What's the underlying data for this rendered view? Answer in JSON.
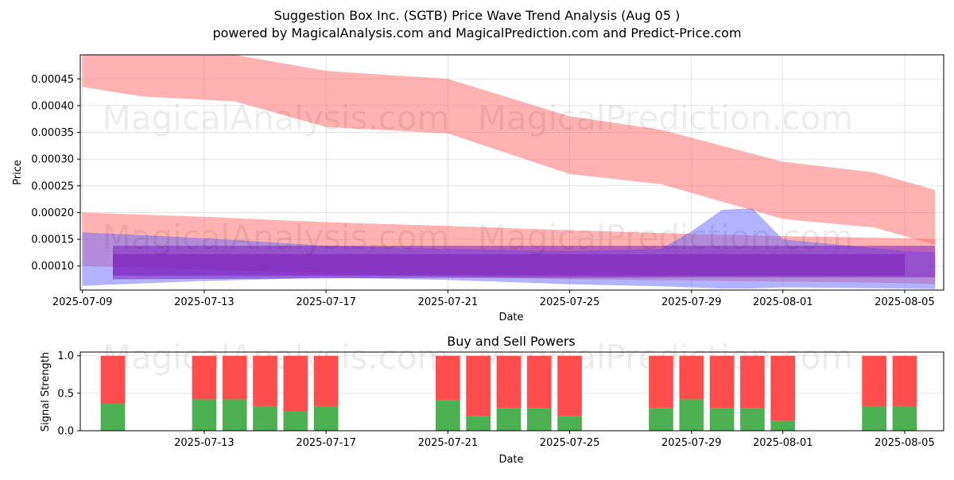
{
  "title_line1": "Suggestion Box Inc. (SGTB) Price Wave Trend Analysis (Aug 05 )",
  "title_line2": "powered by MagicalAnalysis.com and MagicalPrediction.com and Predict-Price.com",
  "watermarks": [
    "MagicalAnalysis.com",
    "MagicalPrediction.com"
  ],
  "colors": {
    "red_band": "#ff6666",
    "blue_band": "#6666ff",
    "purple_band": "#7f1fbf",
    "buy": "#4caf50",
    "sell": "#ff4c4c"
  },
  "chart_data": [
    {
      "type": "area",
      "title": "",
      "xlabel": "Date",
      "ylabel": "Price",
      "x_ticks": [
        "2025-07-09",
        "2025-07-13",
        "2025-07-17",
        "2025-07-21",
        "2025-07-25",
        "2025-07-29",
        "2025-08-01",
        "2025-08-05"
      ],
      "y_ticks": [
        "0.00010",
        "0.00015",
        "0.00020",
        "0.00025",
        "0.00030",
        "0.00035",
        "0.00040",
        "0.00045"
      ],
      "xlim": [
        "2025-07-09",
        "2025-08-06"
      ],
      "ylim": [
        5.5e-05,
        0.000495
      ],
      "grid": true,
      "series": [
        {
          "kind": "band",
          "color": "red",
          "x": [
            "2025-07-09",
            "2025-07-11",
            "2025-07-14",
            "2025-07-17",
            "2025-07-21",
            "2025-07-25",
            "2025-07-28",
            "2025-08-01",
            "2025-08-04",
            "2025-08-06"
          ],
          "upper": [
            0.000495,
            0.000495,
            0.000495,
            0.000465,
            0.00045,
            0.00038,
            0.000355,
            0.000295,
            0.000275,
            0.000242
          ],
          "lower": [
            0.000435,
            0.000417,
            0.000408,
            0.00036,
            0.000348,
            0.000272,
            0.000253,
            0.000188,
            0.000172,
            0.00014
          ]
        },
        {
          "kind": "band",
          "color": "red",
          "x": [
            "2025-07-09",
            "2025-07-13",
            "2025-07-17",
            "2025-07-21",
            "2025-07-25",
            "2025-07-29",
            "2025-08-01",
            "2025-08-05",
            "2025-08-06"
          ],
          "upper": [
            0.0002,
            0.000192,
            0.000182,
            0.000175,
            0.000167,
            0.00016,
            0.000156,
            0.000152,
            0.00015
          ],
          "lower": [
            0.0001,
            9.3e-05,
            8.6e-05,
            8e-05,
            7.5e-05,
            7.3e-05,
            7.1e-05,
            6.8e-05,
            6.6e-05
          ]
        },
        {
          "kind": "band",
          "color": "blue",
          "x": [
            "2025-07-09",
            "2025-07-13",
            "2025-07-17",
            "2025-07-21",
            "2025-07-25",
            "2025-07-28",
            "2025-07-29",
            "2025-07-30",
            "2025-07-31",
            "2025-08-01",
            "2025-08-05",
            "2025-08-06"
          ],
          "upper": [
            0.000163,
            0.000152,
            0.000138,
            0.000132,
            0.000128,
            0.000132,
            0.000165,
            0.000205,
            0.000208,
            0.00015,
            0.000128,
            0.000126
          ],
          "lower": [
            6.3e-05,
            7.2e-05,
            7.8e-05,
            7.4e-05,
            6.6e-05,
            6.2e-05,
            6e-05,
            5.8e-05,
            5.8e-05,
            6e-05,
            5.8e-05,
            5.7e-05
          ]
        },
        {
          "kind": "band",
          "color": "purple",
          "x": [
            "2025-07-10",
            "2025-07-13",
            "2025-07-17",
            "2025-07-21",
            "2025-07-25",
            "2025-07-29",
            "2025-08-01",
            "2025-08-05",
            "2025-08-06"
          ],
          "upper": [
            0.000138,
            0.000138,
            0.000138,
            0.000138,
            0.000138,
            0.000138,
            0.000138,
            0.000138,
            0.000138
          ],
          "lower": [
            7.5e-05,
            7.6e-05,
            7.7e-05,
            7.8e-05,
            7.8e-05,
            7.9e-05,
            7.9e-05,
            7.9e-05,
            7.9e-05
          ]
        },
        {
          "kind": "band",
          "color": "purple",
          "x": [
            "2025-07-10",
            "2025-07-13",
            "2025-07-17",
            "2025-07-21",
            "2025-07-25",
            "2025-07-29",
            "2025-08-01",
            "2025-08-05"
          ],
          "upper": [
            0.000122,
            0.000122,
            0.000122,
            0.000122,
            0.000122,
            0.000122,
            0.000122,
            0.000122
          ],
          "lower": [
            8.2e-05,
            8.2e-05,
            8.2e-05,
            8.2e-05,
            8.2e-05,
            8.2e-05,
            8.2e-05,
            8.2e-05
          ]
        }
      ]
    },
    {
      "type": "bar",
      "title": "Buy and Sell Powers",
      "xlabel": "Date",
      "ylabel": "Signal Strength",
      "x_ticks": [
        "2025-07-13",
        "2025-07-17",
        "2025-07-21",
        "2025-07-25",
        "2025-07-29",
        "2025-08-01",
        "2025-08-05"
      ],
      "y_ticks": [
        "0.0",
        "0.5",
        "1.0"
      ],
      "ylim": [
        0,
        1.05
      ],
      "grid": true,
      "categories": [
        "2025-07-10",
        "2025-07-13",
        "2025-07-14",
        "2025-07-15",
        "2025-07-16",
        "2025-07-17",
        "2025-07-21",
        "2025-07-22",
        "2025-07-23",
        "2025-07-24",
        "2025-07-25",
        "2025-07-28",
        "2025-07-29",
        "2025-07-30",
        "2025-07-31",
        "2025-08-01",
        "2025-08-04",
        "2025-08-05"
      ],
      "series": [
        {
          "name": "buy",
          "values": [
            0.36,
            0.42,
            0.42,
            0.33,
            0.26,
            0.33,
            0.41,
            0.2,
            0.3,
            0.3,
            0.2,
            0.3,
            0.42,
            0.3,
            0.3,
            0.13,
            0.33,
            0.33
          ]
        },
        {
          "name": "sell",
          "values": [
            0.64,
            0.58,
            0.58,
            0.67,
            0.74,
            0.67,
            0.59,
            0.8,
            0.7,
            0.7,
            0.8,
            0.7,
            0.58,
            0.7,
            0.7,
            0.87,
            0.67,
            0.67
          ]
        }
      ]
    }
  ]
}
